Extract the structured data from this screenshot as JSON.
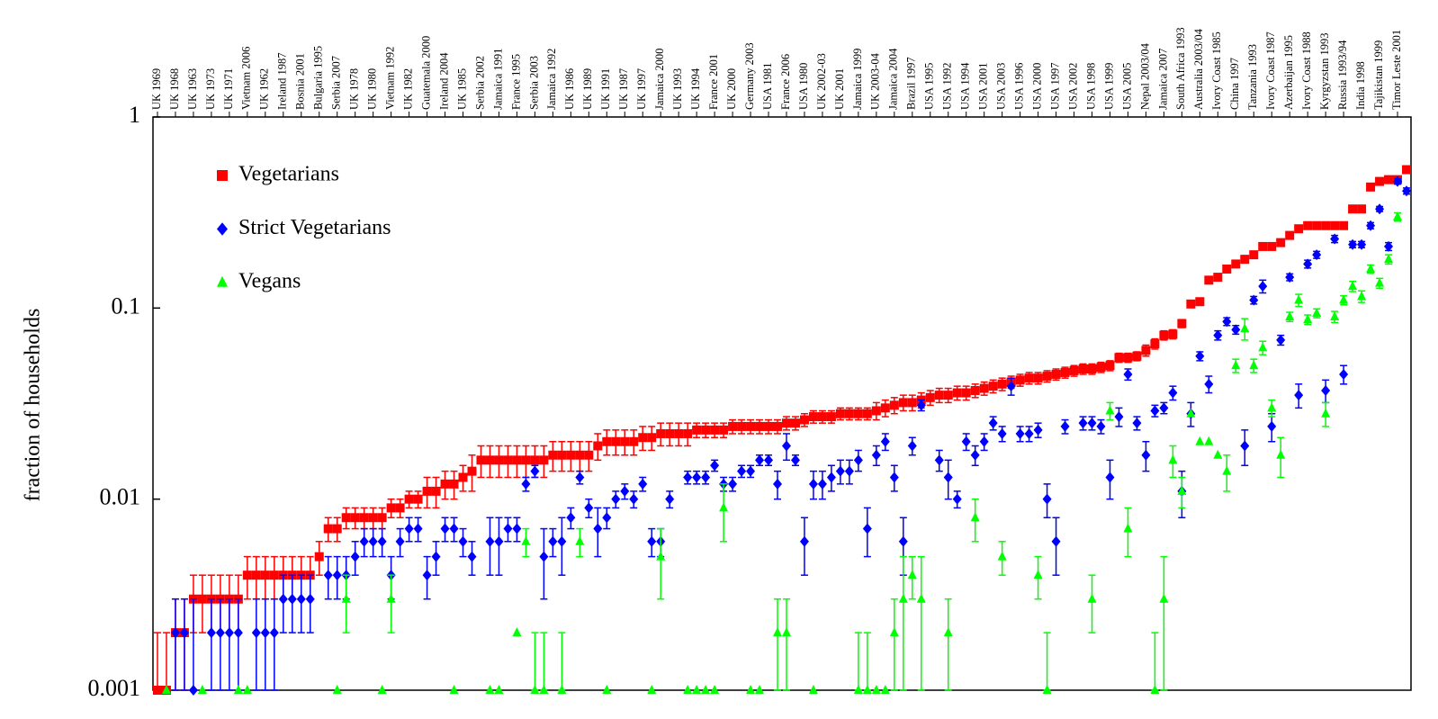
{
  "chart_data": {
    "type": "scatter",
    "y_label": "fraction of households",
    "log_y": true,
    "legend": "upper left",
    "ylim": [
      0.001,
      1
    ],
    "yticks": [
      0.001,
      0.01,
      0.1,
      1
    ],
    "categories": [
      "UK 1969",
      null,
      "UK 1968",
      null,
      "UK 1963",
      null,
      "UK 1973",
      null,
      "UK 1971",
      null,
      "Vietnam 2006",
      null,
      "UK 1962",
      null,
      "Ireland 1987",
      null,
      "Bosnia 2001",
      null,
      "Bulgaria 1995",
      null,
      "Serbia 2007",
      null,
      "UK 1978",
      null,
      "UK 1980",
      null,
      "Vietnam 1992",
      null,
      "UK 1982",
      null,
      "Guatemala 2000",
      null,
      "Ireland 2004",
      null,
      "UK 1985",
      null,
      "Serbia 2002",
      null,
      "Jamaica 1991",
      null,
      "France 1995",
      null,
      "Serbia 2003",
      null,
      "Jamaica 1992",
      null,
      "UK 1986",
      null,
      "UK 1989",
      null,
      "UK 1991",
      null,
      "UK 1987",
      null,
      "UK 1997",
      null,
      "Jamaica 2000",
      null,
      "UK 1993",
      null,
      "UK 1994",
      null,
      "France 2001",
      null,
      "UK 2000",
      null,
      "Germany 2003",
      null,
      "USA 1981",
      null,
      "France 2006",
      null,
      "USA 1980",
      null,
      "UK 2002-03",
      null,
      "UK 2001",
      null,
      "Jamaica 1999",
      null,
      "UK 2003-04",
      null,
      "Jamaica 2004",
      null,
      "Brazil 1997",
      null,
      "USA 1995",
      null,
      "USA 1992",
      null,
      "USA 1994",
      null,
      "USA 2001",
      null,
      "USA 2003",
      null,
      "USA 1996",
      null,
      "USA 2000",
      null,
      "USA 1997",
      null,
      "USA 2002",
      null,
      "USA 1998",
      null,
      "USA 1999",
      null,
      "USA 2005",
      null,
      "Nepal 2003/04",
      null,
      "Jamaica 2007",
      null,
      "South Africa 1993",
      null,
      "Australia 2003/04",
      null,
      "Ivory Coast 1985",
      null,
      "China 1997",
      null,
      "Tanzania 1993",
      null,
      "Ivory Coast 1987",
      null,
      "Azerbaijan 1995",
      null,
      "Ivory Coast 1988",
      null,
      "Kyrgyzstan 1993",
      null,
      "Russia 1993/94",
      null,
      "India 1998",
      null,
      "Tajikistan 1999",
      null,
      "Timor Leste 2001",
      null
    ],
    "series": [
      {
        "name": "Vegetarians",
        "color": "#ff0000",
        "marker": "square",
        "values": [
          0.001,
          0.001,
          0.002,
          0.002,
          0.003,
          0.003,
          0.003,
          0.003,
          0.003,
          0.003,
          0.004,
          0.004,
          0.004,
          0.004,
          0.004,
          0.004,
          0.004,
          0.004,
          0.005,
          0.007,
          0.007,
          0.008,
          0.008,
          0.008,
          0.008,
          0.008,
          0.009,
          0.009,
          0.01,
          0.01,
          0.011,
          0.011,
          0.012,
          0.012,
          0.013,
          0.014,
          0.016,
          0.016,
          0.016,
          0.016,
          0.016,
          0.016,
          0.016,
          0.016,
          0.017,
          0.017,
          0.017,
          0.017,
          0.017,
          0.019,
          0.02,
          0.02,
          0.02,
          0.02,
          0.021,
          0.021,
          0.022,
          0.022,
          0.022,
          0.022,
          0.023,
          0.023,
          0.023,
          0.023,
          0.024,
          0.024,
          0.024,
          0.024,
          0.024,
          0.024,
          0.025,
          0.025,
          0.026,
          0.027,
          0.027,
          0.027,
          0.028,
          0.028,
          0.028,
          0.028,
          0.029,
          0.03,
          0.031,
          0.032,
          0.032,
          0.033,
          0.034,
          0.035,
          0.035,
          0.036,
          0.036,
          0.037,
          0.038,
          0.039,
          0.04,
          0.041,
          0.042,
          0.043,
          0.043,
          0.044,
          0.045,
          0.046,
          0.047,
          0.048,
          0.048,
          0.049,
          0.05,
          0.055,
          0.055,
          0.056,
          0.06,
          0.065,
          0.072,
          0.073,
          0.083,
          0.105,
          0.108,
          0.14,
          0.145,
          0.16,
          0.17,
          0.18,
          0.19,
          0.21,
          0.21,
          0.22,
          0.24,
          0.26,
          0.27,
          0.27,
          0.27,
          0.27,
          0.27,
          0.33,
          0.33,
          0.43,
          0.46,
          0.47,
          0.47,
          0.53
        ],
        "errors": [
          0.001,
          0.001,
          0.001,
          0.001,
          0.001,
          0.001,
          0.001,
          0.001,
          0.001,
          0.001,
          0.001,
          0.001,
          0.001,
          0.001,
          0.001,
          0.001,
          0.001,
          0.001,
          0.001,
          0.001,
          0.001,
          0.001,
          0.001,
          0.001,
          0.001,
          0.001,
          0.001,
          0.001,
          0.001,
          0.001,
          0.002,
          0.002,
          0.002,
          0.002,
          0.002,
          0.003,
          0.003,
          0.003,
          0.003,
          0.003,
          0.003,
          0.003,
          0.003,
          0.003,
          0.003,
          0.003,
          0.003,
          0.003,
          0.003,
          0.003,
          0.003,
          0.003,
          0.003,
          0.003,
          0.003,
          0.003,
          0.003,
          0.003,
          0.003,
          0.003,
          0.002,
          0.002,
          0.002,
          0.002,
          0.002,
          0.002,
          0.002,
          0.002,
          0.002,
          0.002,
          0.002,
          0.002,
          0.002,
          0.002,
          0.002,
          0.002,
          0.002,
          0.002,
          0.002,
          0.002,
          0.003,
          0.003,
          0.003,
          0.003,
          0.003,
          0.003,
          0.003,
          0.003,
          0.003,
          0.003,
          0.003,
          0.003,
          0.003,
          0.003,
          0.003,
          0.003,
          0.003,
          0.003,
          0.003,
          0.003,
          0.003,
          0.003,
          0.003,
          0.003,
          0.003,
          0.003,
          0.003,
          0.003,
          0.003,
          0.003,
          0.004,
          0.004,
          0.004,
          0.004,
          0.004,
          0.004,
          0.004,
          0.004,
          0.004,
          0.004,
          0.005,
          0.005,
          0.005,
          0.005,
          0.005,
          0.005,
          0.005,
          0.005,
          0.005,
          0.005,
          0.01,
          0.01,
          0.01,
          0.01,
          0.01,
          0.01,
          0.01,
          0.01,
          0.01,
          0.01
        ]
      },
      {
        "name": "Strict Vegetarians",
        "color": "#0000ff",
        "marker": "diamond",
        "values": [
          null,
          null,
          0.002,
          0.002,
          0.001,
          null,
          0.002,
          0.002,
          0.002,
          0.002,
          null,
          0.002,
          0.002,
          0.002,
          0.003,
          0.003,
          0.003,
          0.003,
          null,
          0.004,
          0.004,
          0.004,
          0.005,
          0.006,
          0.006,
          0.006,
          0.004,
          0.006,
          0.007,
          0.007,
          0.004,
          0.005,
          0.007,
          0.007,
          0.006,
          0.005,
          null,
          0.006,
          0.006,
          0.007,
          0.007,
          0.012,
          0.014,
          0.005,
          0.006,
          0.006,
          0.008,
          0.013,
          0.009,
          0.007,
          0.008,
          0.01,
          0.011,
          0.01,
          0.012,
          0.006,
          0.006,
          0.01,
          null,
          0.013,
          0.013,
          0.013,
          0.015,
          0.012,
          0.012,
          0.014,
          0.014,
          0.016,
          0.016,
          0.012,
          0.019,
          0.016,
          0.006,
          0.012,
          0.012,
          0.013,
          0.014,
          0.014,
          0.016,
          0.007,
          0.017,
          0.02,
          0.013,
          0.006,
          0.019,
          0.031,
          null,
          0.016,
          0.013,
          0.01,
          0.02,
          0.017,
          0.02,
          0.025,
          0.022,
          0.039,
          0.022,
          0.022,
          0.023,
          0.01,
          0.006,
          0.024,
          null,
          0.025,
          0.025,
          0.024,
          0.013,
          0.027,
          0.045,
          0.025,
          0.017,
          0.029,
          0.03,
          0.036,
          0.011,
          0.028,
          0.056,
          0.04,
          0.072,
          0.085,
          0.077,
          0.019,
          0.11,
          0.13,
          0.024,
          0.068,
          0.145,
          0.035,
          0.17,
          0.19,
          0.037,
          0.23,
          0.045,
          0.215,
          0.215,
          0.27,
          0.33,
          0.21,
          0.46,
          0.41
        ],
        "errors": [
          null,
          null,
          0.001,
          0.001,
          0.002,
          null,
          0.001,
          0.001,
          0.001,
          0.001,
          null,
          0.001,
          0.001,
          0.001,
          0.001,
          0.001,
          0.001,
          0.001,
          null,
          0.001,
          0.001,
          0.001,
          0.001,
          0.001,
          0.001,
          0.001,
          0.001,
          0.001,
          0.001,
          0.001,
          0.001,
          0.001,
          0.001,
          0.001,
          0.001,
          0.001,
          null,
          0.002,
          0.002,
          0.001,
          0.001,
          0.001,
          0.001,
          0.002,
          0.001,
          0.002,
          0.001,
          0.001,
          0.001,
          0.002,
          0.001,
          0.001,
          0.001,
          0.001,
          0.001,
          0.001,
          0.001,
          0.001,
          null,
          0.001,
          0.001,
          0.001,
          0.001,
          0.001,
          0.001,
          0.001,
          0.001,
          0.001,
          0.001,
          0.002,
          0.003,
          0.001,
          0.002,
          0.002,
          0.002,
          0.002,
          0.002,
          0.002,
          0.002,
          0.002,
          0.002,
          0.002,
          0.002,
          0.002,
          0.002,
          0.002,
          null,
          0.002,
          0.003,
          0.001,
          0.002,
          0.002,
          0.002,
          0.002,
          0.002,
          0.004,
          0.002,
          0.002,
          0.002,
          0.002,
          0.002,
          0.002,
          null,
          0.002,
          0.002,
          0.002,
          0.003,
          0.003,
          0.003,
          0.002,
          0.003,
          0.002,
          0.002,
          0.003,
          0.003,
          0.004,
          0.003,
          0.004,
          0.004,
          0.004,
          0.004,
          0.004,
          0.005,
          0.01,
          0.004,
          0.004,
          0.006,
          0.005,
          0.008,
          0.008,
          0.005,
          0.01,
          0.005,
          0.008,
          0.008,
          0.01,
          0.01,
          0.01,
          0.015,
          0.015
        ]
      },
      {
        "name": "Vegans",
        "color": "#00ff00",
        "marker": "triangle",
        "values": [
          null,
          0.001,
          null,
          null,
          null,
          0.001,
          null,
          null,
          null,
          0.001,
          0.001,
          null,
          null,
          null,
          null,
          null,
          null,
          null,
          null,
          null,
          0.001,
          0.003,
          null,
          null,
          null,
          0.001,
          0.003,
          null,
          null,
          null,
          null,
          null,
          null,
          0.001,
          null,
          null,
          null,
          0.001,
          0.001,
          null,
          0.002,
          0.006,
          0.001,
          0.001,
          null,
          0.001,
          null,
          0.006,
          null,
          null,
          0.001,
          null,
          null,
          null,
          null,
          0.001,
          0.005,
          null,
          null,
          0.001,
          0.001,
          0.001,
          0.001,
          0.009,
          null,
          null,
          0.001,
          0.001,
          null,
          0.002,
          0.002,
          null,
          null,
          0.001,
          null,
          null,
          null,
          null,
          0.001,
          0.001,
          0.001,
          0.001,
          0.002,
          0.003,
          0.004,
          0.003,
          null,
          null,
          0.002,
          null,
          null,
          0.008,
          null,
          null,
          0.005,
          null,
          null,
          null,
          0.004,
          0.001,
          null,
          null,
          null,
          null,
          0.003,
          null,
          0.029,
          null,
          0.007,
          null,
          null,
          0.001,
          0.003,
          0.016,
          0.011,
          0.028,
          0.02,
          0.02,
          0.017,
          0.014,
          0.05,
          0.078,
          0.05,
          0.062,
          0.03,
          0.017,
          0.09,
          0.11,
          0.087,
          0.094,
          0.028,
          0.09,
          0.11,
          0.13,
          0.115,
          0.16,
          0.135,
          0.18,
          0.3,
          null
        ],
        "errors": [
          null,
          null,
          null,
          null,
          null,
          null,
          null,
          null,
          null,
          null,
          null,
          null,
          null,
          null,
          null,
          null,
          null,
          null,
          null,
          null,
          null,
          0.001,
          null,
          null,
          null,
          null,
          0.001,
          null,
          null,
          null,
          null,
          null,
          null,
          null,
          null,
          null,
          null,
          null,
          null,
          null,
          null,
          0.001,
          0.001,
          0.001,
          null,
          0.001,
          null,
          0.001,
          null,
          null,
          null,
          null,
          null,
          null,
          null,
          null,
          0.002,
          null,
          null,
          null,
          null,
          null,
          null,
          0.003,
          null,
          null,
          null,
          null,
          null,
          0.001,
          0.001,
          null,
          null,
          null,
          null,
          null,
          null,
          null,
          0.001,
          0.001,
          null,
          null,
          0.001,
          0.002,
          0.001,
          0.002,
          null,
          null,
          0.001,
          null,
          null,
          0.002,
          null,
          null,
          0.001,
          null,
          null,
          null,
          0.001,
          0.001,
          null,
          null,
          null,
          null,
          0.001,
          null,
          0.003,
          null,
          0.002,
          null,
          null,
          0.001,
          0.002,
          0.003,
          0.002,
          null,
          null,
          null,
          null,
          0.003,
          0.004,
          0.01,
          0.004,
          0.005,
          0.003,
          0.004,
          0.005,
          0.008,
          0.005,
          0.005,
          0.004,
          0.006,
          0.006,
          0.008,
          0.008,
          0.008,
          0.008,
          0.01,
          0.015,
          null
        ]
      }
    ]
  }
}
